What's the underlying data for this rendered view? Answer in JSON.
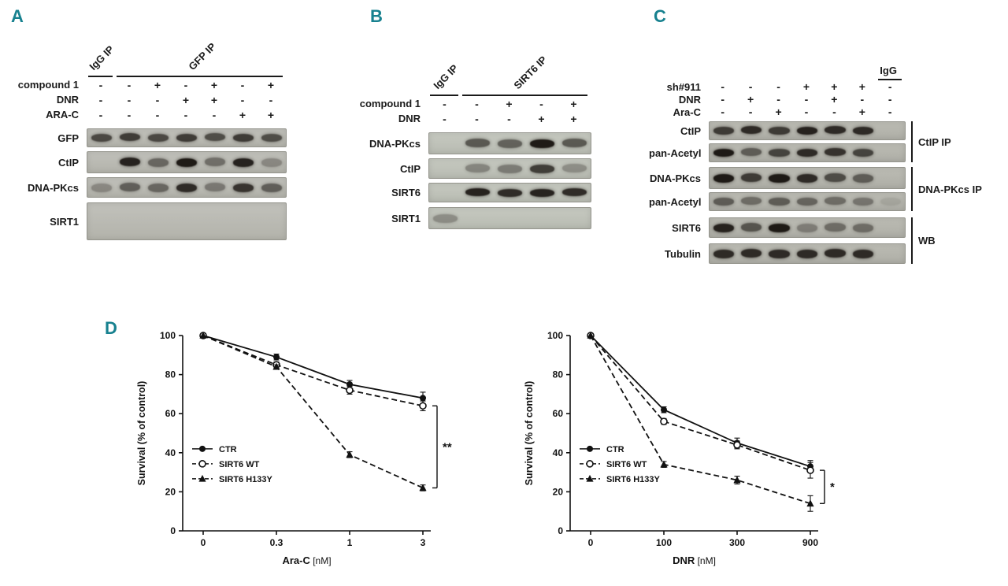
{
  "colors": {
    "panel_label": "#17818f",
    "band": "#16120e",
    "axis": "#111111"
  },
  "panel_a": {
    "label": "A",
    "num_lanes": 7,
    "ip_groups": [
      {
        "label": "IgG IP",
        "start": 0,
        "span": 1,
        "rotate": true
      },
      {
        "label": "GFP IP",
        "start": 1,
        "span": 6,
        "rotate": true
      }
    ],
    "treatments": [
      {
        "label": "compound 1",
        "values": [
          "-",
          "-",
          "+",
          "-",
          "+",
          "-",
          "+"
        ]
      },
      {
        "label": "DNR",
        "values": [
          "-",
          "-",
          "-",
          "+",
          "+",
          "-",
          "-"
        ]
      },
      {
        "label": "ARA-C",
        "values": [
          "-",
          "-",
          "-",
          "-",
          "-",
          "+",
          "+"
        ]
      }
    ],
    "blots": [
      {
        "label": "GFP",
        "height": 22,
        "gap_before": 8,
        "bands": [
          0.68,
          0.75,
          0.68,
          0.75,
          0.65,
          0.75,
          0.65
        ]
      },
      {
        "label": "CtIP",
        "height": 26,
        "gap_before": 5,
        "bands": [
          0,
          0.9,
          0.5,
          0.95,
          0.45,
          0.9,
          0.3
        ]
      },
      {
        "label": "DNA-PKcs",
        "height": 24,
        "gap_before": 5,
        "bands": [
          0.3,
          0.55,
          0.5,
          0.85,
          0.4,
          0.8,
          0.55
        ]
      },
      {
        "label": "SIRT1",
        "height": 46,
        "gap_before": 6,
        "bands": [
          0,
          0,
          0,
          0,
          0,
          0,
          0
        ]
      }
    ]
  },
  "panel_b": {
    "label": "B",
    "num_lanes": 5,
    "ip_groups": [
      {
        "label": "IgG IP",
        "start": 0,
        "span": 1,
        "rotate": true
      },
      {
        "label": "SIRT6 IP",
        "start": 1,
        "span": 4,
        "rotate": true
      }
    ],
    "treatments": [
      {
        "label": "compound 1",
        "values": [
          "-",
          "-",
          "+",
          "-",
          "+"
        ]
      },
      {
        "label": "DNR",
        "values": [
          "-",
          "-",
          "-",
          "+",
          "+"
        ]
      }
    ],
    "blots": [
      {
        "label": "DNA-PKcs",
        "height": 26,
        "gap_before": 8,
        "bands": [
          0,
          0.6,
          0.55,
          0.95,
          0.6
        ]
      },
      {
        "label": "CtIP",
        "height": 24,
        "gap_before": 5,
        "bands": [
          0,
          0.35,
          0.4,
          0.75,
          0.3
        ]
      },
      {
        "label": "SIRT6",
        "height": 23,
        "gap_before": 5,
        "bands": [
          0,
          0.9,
          0.85,
          0.9,
          0.85
        ]
      },
      {
        "label": "SIRT1",
        "height": 26,
        "gap_before": 6,
        "bands": [
          0.3,
          0,
          0,
          0,
          0
        ]
      }
    ]
  },
  "panel_c": {
    "label": "C",
    "num_lanes": 7,
    "ip_groups": [
      {
        "label": "IgG",
        "start": 6,
        "span": 1,
        "rotate": false
      }
    ],
    "treatments": [
      {
        "label": "sh#911",
        "values": [
          "-",
          "-",
          "-",
          "+",
          "+",
          "+",
          "-"
        ]
      },
      {
        "label": "DNR",
        "values": [
          "-",
          "+",
          "-",
          "-",
          "+",
          "-",
          "-"
        ]
      },
      {
        "label": "Ara-C",
        "values": [
          "-",
          "-",
          "+",
          "-",
          "-",
          "+",
          "-"
        ]
      }
    ],
    "blots": [
      {
        "label": "CtIP",
        "height": 22,
        "gap_before": 4,
        "bands": [
          0.75,
          0.85,
          0.75,
          0.9,
          0.85,
          0.85,
          0
        ]
      },
      {
        "label": "pan-Acetyl",
        "height": 22,
        "gap_before": 4,
        "bands": [
          0.95,
          0.55,
          0.7,
          0.85,
          0.8,
          0.7,
          0
        ]
      },
      {
        "label": "DNA-PKcs",
        "height": 26,
        "gap_before": 6,
        "bands": [
          0.95,
          0.75,
          0.95,
          0.85,
          0.65,
          0.55,
          0
        ]
      },
      {
        "label": "pan-Acetyl",
        "height": 22,
        "gap_before": 4,
        "bands": [
          0.55,
          0.45,
          0.55,
          0.5,
          0.45,
          0.4,
          0.1
        ]
      },
      {
        "label": "SIRT6",
        "height": 24,
        "gap_before": 8,
        "bands": [
          0.9,
          0.6,
          0.95,
          0.35,
          0.45,
          0.45,
          0
        ]
      },
      {
        "label": "Tubulin",
        "height": 24,
        "gap_before": 7,
        "bands": [
          0.85,
          0.85,
          0.85,
          0.85,
          0.85,
          0.85,
          0
        ]
      }
    ],
    "right_brackets": [
      {
        "label": "CtIP  IP",
        "rows": [
          0,
          1
        ]
      },
      {
        "label": "DNA-PKcs IP",
        "rows": [
          2,
          3
        ]
      },
      {
        "label": "WB",
        "rows": [
          4,
          5
        ]
      }
    ]
  },
  "panel_d": {
    "label": "D"
  },
  "chart_data": [
    {
      "type": "line",
      "xlabel": "Ara-C [nM]",
      "ylabel": "Survival (% of control)",
      "categories": [
        "0",
        "0.3",
        "1",
        "3"
      ],
      "ylim": [
        0,
        100
      ],
      "yticks": [
        0,
        20,
        40,
        60,
        80,
        100
      ],
      "grid": false,
      "legend_position": "left-middle",
      "significance": "**",
      "series": [
        {
          "name": "CTR",
          "marker": "circle-filled",
          "line": "solid",
          "values": [
            100,
            89,
            75,
            68
          ],
          "errors": [
            0,
            1.5,
            2,
            3
          ]
        },
        {
          "name": "SIRT6 WT",
          "marker": "circle-open",
          "line": "dashed",
          "values": [
            100,
            85,
            72,
            64
          ],
          "errors": [
            0,
            1.5,
            2,
            2.5
          ]
        },
        {
          "name": "SIRT6 H133Y",
          "marker": "triangle-filled",
          "line": "dashed",
          "values": [
            100,
            84,
            39,
            22
          ],
          "errors": [
            0,
            1,
            1.5,
            1.5
          ]
        }
      ]
    },
    {
      "type": "line",
      "xlabel": "DNR [nM]",
      "ylabel": "Survival (% of control)",
      "categories": [
        "0",
        "100",
        "300",
        "900"
      ],
      "ylim": [
        0,
        100
      ],
      "yticks": [
        0,
        20,
        40,
        60,
        80,
        100
      ],
      "grid": false,
      "legend_position": "left-middle",
      "significance": "*",
      "series": [
        {
          "name": "CTR",
          "marker": "circle-filled",
          "line": "solid",
          "values": [
            100,
            62,
            45,
            33
          ],
          "errors": [
            0,
            1.5,
            2.5,
            3
          ]
        },
        {
          "name": "SIRT6 WT",
          "marker": "circle-open",
          "line": "dashed",
          "values": [
            100,
            56,
            44,
            31
          ],
          "errors": [
            0,
            1.5,
            2,
            4
          ]
        },
        {
          "name": "SIRT6 H133Y",
          "marker": "triangle-filled",
          "line": "dashed",
          "values": [
            100,
            34,
            26,
            14
          ],
          "errors": [
            0,
            1.5,
            2,
            4
          ]
        }
      ]
    }
  ]
}
